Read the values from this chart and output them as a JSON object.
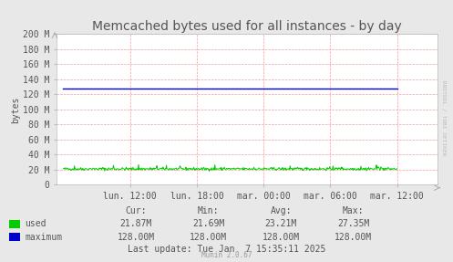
{
  "title": "Memcached bytes used for all instances - by day",
  "ylabel": "bytes",
  "bg_color": "#e8e8e8",
  "plot_bg_color": "#ffffff",
  "grid_color": "#ff9999",
  "ylim": [
    0,
    209715200
  ],
  "yticks_values": [
    0,
    20971520,
    41943040,
    62914560,
    83886080,
    104857600,
    125829120,
    146800640,
    167772160,
    188743680,
    209715200
  ],
  "ytick_labels": [
    "0",
    "20 M",
    "40 M",
    "60 M",
    "80 M",
    "100 M",
    "120 M",
    "140 M",
    "160 M",
    "180 M",
    "200 M"
  ],
  "xtick_labels": [
    "lun. 12:00",
    "lun. 18:00",
    "mar. 00:00",
    "mar. 06:00",
    "mar. 12:00"
  ],
  "xtick_positions": [
    0.2,
    0.4,
    0.6,
    0.8,
    1.0
  ],
  "used_color": "#00cc00",
  "maximum_color": "#0000cc",
  "maximum_value": 134217728,
  "watermark": "RRDTOOL / TOBI OETIKER",
  "munin_text": "Munin 2.0.67",
  "legend_labels": [
    "used",
    "maximum"
  ],
  "legend_colors": [
    "#00cc00",
    "#0000cc"
  ],
  "stats_headers": [
    "Cur:",
    "Min:",
    "Avg:",
    "Max:"
  ],
  "stats_used": [
    "21.87M",
    "21.69M",
    "23.21M",
    "27.35M"
  ],
  "stats_max": [
    "128.00M",
    "128.00M",
    "128.00M",
    "128.00M"
  ],
  "last_update": "Last update: Tue Jan  7 15:35:11 2025",
  "font_color": "#555555",
  "title_fontsize": 10,
  "axis_fontsize": 7,
  "tick_fontsize": 7,
  "stats_fontsize": 7
}
